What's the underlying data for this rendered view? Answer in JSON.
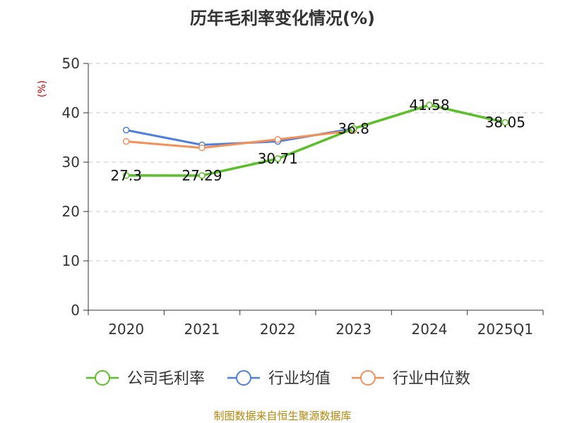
{
  "chart_data": {
    "type": "line",
    "title": "历年毛利率变化情况(%)",
    "ylabel": "(%)",
    "categories": [
      "2020",
      "2021",
      "2022",
      "2023",
      "2024",
      "2025Q1"
    ],
    "ylim": [
      0,
      50
    ],
    "yticks": [
      0,
      10,
      20,
      30,
      40,
      50
    ],
    "grid": true,
    "legend_position": "bottom",
    "series": [
      {
        "name": "公司毛利率",
        "color": "#5cbf2a",
        "values": [
          27.3,
          27.29,
          30.71,
          36.8,
          41.58,
          38.05
        ],
        "labels": [
          "27.3",
          "27.29",
          "30.71",
          "36.8",
          "41.58",
          "38.05"
        ]
      },
      {
        "name": "行业均值",
        "color": "#4f7fdd",
        "values": [
          36.5,
          33.5,
          34.2,
          36.8,
          null,
          null
        ]
      },
      {
        "name": "行业中位数",
        "color": "#f39058",
        "values": [
          34.2,
          32.9,
          34.6,
          36.4,
          null,
          null
        ]
      }
    ],
    "source": "制图数据来自恒生聚源数据库"
  }
}
